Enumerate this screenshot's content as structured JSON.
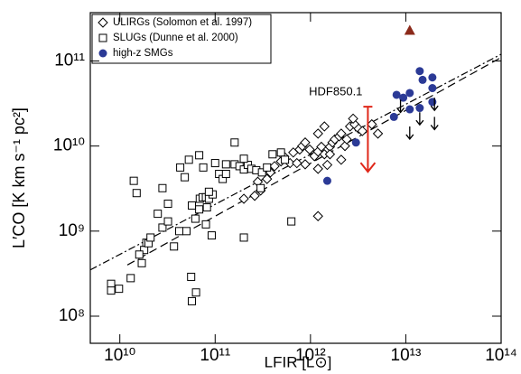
{
  "chart_data": {
    "type": "scatter",
    "x_label": "LFIR [L⊙]",
    "y_label": "L′CO [K km s⁻¹ pc²]",
    "log_x": true,
    "log_y": true,
    "xlim": [
      4900000000.0,
      100000000000000.0
    ],
    "ylim": [
      48000000.0,
      370000000000.0
    ],
    "xticks": [
      {
        "value": 10000000000.0,
        "label": "10¹⁰"
      },
      {
        "value": 100000000000.0,
        "label": "10¹¹"
      },
      {
        "value": 1000000000000.0,
        "label": "10¹²"
      },
      {
        "value": 10000000000000.0,
        "label": "10¹³"
      },
      {
        "value": 100000000000000.0,
        "label": "10¹⁴"
      }
    ],
    "yticks": [
      {
        "value": 100000000.0,
        "label": "10⁸"
      },
      {
        "value": 1000000000.0,
        "label": "10⁹"
      },
      {
        "value": 10000000000.0,
        "label": "10¹⁰"
      },
      {
        "value": 100000000000.0,
        "label": "10¹¹"
      }
    ],
    "legend": "upper-left",
    "series": [
      {
        "name": "ULIRGs (Solomon et al. 1997)",
        "marker": "diamond",
        "color": "#000000",
        "x": [
          200000000000.0,
          280000000000.0,
          300000000000.0,
          350000000000.0,
          380000000000.0,
          420000000000.0,
          490000000000.0,
          530000000000.0,
          610000000000.0,
          660000000000.0,
          720000000000.0,
          770000000000.0,
          820000000000.0,
          880000000000.0,
          980000000000.0,
          1100000000000.0,
          1200000000000.0,
          1300000000000.0,
          1400000000000.0,
          1600000000000.0,
          1700000000000.0,
          1800000000000.0,
          2000000000000.0,
          2100000000000.0,
          2300000000000.0,
          2400000000000.0,
          2600000000000.0,
          2900000000000.0,
          3200000000000.0,
          3500000000000.0,
          4400000000000.0,
          5100000000000.0,
          1200000000000.0,
          2100000000000.0,
          880000000000.0,
          1200000000000.0,
          1500000000000.0,
          1200000000000.0,
          260000000000.0,
          1400000000000.0,
          2800000000000.0,
          1600000000000.0
        ],
        "values": [
          2400000000.0,
          3800000000.0,
          3000000000.0,
          4100000000.0,
          4900000000.0,
          5800000000.0,
          6600000000.0,
          7500000000.0,
          6300000000.0,
          8400000000.0,
          6300000000.0,
          9100000000.0,
          10000000000.0,
          11000000000.0,
          9100000000.0,
          7600000000.0,
          8600000000.0,
          9800000000.0,
          8000000000.0,
          9800000000.0,
          11000000000.0,
          12000000000.0,
          13000000000.0,
          14000000000.0,
          10000000000.0,
          12000000000.0,
          17000000000.0,
          18000000000.0,
          16000000000.0,
          15000000000.0,
          18000000000.0,
          14000000000.0,
          1500000000.0,
          6900000000.0,
          6100000000.0,
          5400000000.0,
          6000000000.0,
          14000000000.0,
          2600000000.0,
          17000000000.0,
          21000000000.0,
          8000000000.0
        ]
      },
      {
        "name": "SLUGs (Dunne et al. 2000)",
        "marker": "square",
        "color": "#000000",
        "x": [
          8100000000.0,
          8100000000.0,
          9800000000.0,
          13000000000.0,
          17000000000.0,
          18000000000.0,
          19000000000.0,
          20000000000.0,
          16000000000.0,
          21000000000.0,
          25000000000.0,
          28000000000.0,
          32000000000.0,
          37000000000.0,
          42000000000.0,
          50000000000.0,
          57000000000.0,
          56000000000.0,
          57000000000.0,
          63000000000.0,
          62000000000.0,
          68000000000.0,
          69000000000.0,
          74000000000.0,
          80000000000.0,
          86000000000.0,
          82000000000.0,
          94000000000.0,
          86000000000.0,
          110000000000.0,
          120000000000.0,
          130000000000.0,
          160000000000.0,
          180000000000.0,
          200000000000.0,
          220000000000.0,
          240000000000.0,
          270000000000.0,
          310000000000.0,
          350000000000.0,
          100000000000.0,
          130000000000.0,
          53000000000.0,
          68000000000.0,
          75000000000.0,
          48000000000.0,
          28000000000.0,
          14000000000.0,
          15000000000.0,
          43000000000.0,
          80000000000.0,
          160000000000.0,
          200000000000.0,
          630000000000.0,
          92000000000.0,
          200000000000.0,
          300000000000.0,
          400000000000.0,
          490000000000.0,
          540000000000.0,
          32000000000.0
        ],
        "values": [
          240000000.0,
          200000000.0,
          210000000.0,
          280000000.0,
          420000000.0,
          600000000.0,
          730000000.0,
          720000000.0,
          530000000.0,
          840000000.0,
          1600000000.0,
          1100000000.0,
          1300000000.0,
          660000000.0,
          1000000000.0,
          1000000000.0,
          2000000000.0,
          290000000.0,
          150000000.0,
          190000000.0,
          1400000000.0,
          1800000000.0,
          2400000000.0,
          2500000000.0,
          2500000000.0,
          2400000000.0,
          1900000000.0,
          2700000000.0,
          2900000000.0,
          4700000000.0,
          4100000000.0,
          4700000000.0,
          6100000000.0,
          5800000000.0,
          5300000000.0,
          6000000000.0,
          5400000000.0,
          5200000000.0,
          4900000000.0,
          5600000000.0,
          6300000000.0,
          6100000000.0,
          6900000000.0,
          7800000000.0,
          5600000000.0,
          4300000000.0,
          3200000000.0,
          3900000000.0,
          2800000000.0,
          5600000000.0,
          1200000000.0,
          11000000000.0,
          7100000000.0,
          1300000000.0,
          890000000.0,
          840000000.0,
          3200000000.0,
          8000000000.0,
          8400000000.0,
          6900000000.0,
          2100000000.0
        ]
      },
      {
        "name": "high-z SMGs",
        "marker": "circle",
        "color": "#2b3a96",
        "x": [
          1500000000000.0,
          3000000000000.0,
          7500000000000.0,
          8000000000000.0,
          9400000000000.0,
          11000000000000.0,
          11000000000000.0,
          14000000000000.0,
          15000000000000.0,
          19000000000000.0,
          19000000000000.0,
          19000000000000.0,
          14000000000000.0
        ],
        "values": [
          3900000000.0,
          11000000000.0,
          22000000000.0,
          40000000000.0,
          37000000000.0,
          42000000000.0,
          27000000000.0,
          76000000000.0,
          60000000000.0,
          64000000000.0,
          48000000000.0,
          33000000000.0,
          28000000000.0
        ]
      }
    ],
    "upper_limits": {
      "color": "#000000",
      "x": [
        8800000000000.0,
        11000000000000.0,
        14000000000000.0,
        20000000000000.0,
        20000000000000.0
      ],
      "values": [
        35000000000.0,
        17000000000.0,
        25000000000.0,
        22000000000.0,
        37000000000.0
      ]
    },
    "hdf": {
      "label": "HDF850.1",
      "x": 4000000000000.0,
      "y": 29000000000.0,
      "color": "#e0281a"
    },
    "triangle": {
      "x": 11000000000000.0,
      "y": 230000000000.0,
      "color": "#8b2a1a"
    },
    "lines": [
      {
        "style": "dashdot",
        "x": [
          4900000000.0,
          100000000000000.0
        ],
        "y": [
          350000000.0,
          120000000000.0
        ]
      },
      {
        "style": "dashed",
        "x": [
          12000000000.0,
          100000000000000.0
        ],
        "y": [
          400000000.0,
          110000000000.0
        ]
      }
    ]
  }
}
